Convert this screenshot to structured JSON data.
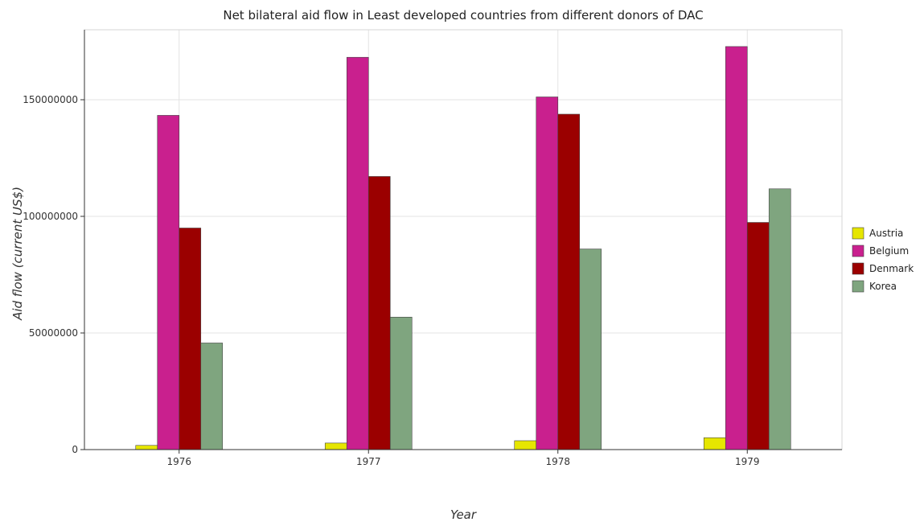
{
  "chart_data": {
    "type": "bar",
    "title": "Net bilateral aid flow in Least developed countries from different donors of DAC",
    "xlabel": "Year",
    "ylabel": "Aid flow (current US$)",
    "categories": [
      "1976",
      "1977",
      "1978",
      "1979"
    ],
    "series": [
      {
        "name": "Austria",
        "color": "#e6e600",
        "values": [
          1800000,
          2800000,
          3800000,
          5100000
        ]
      },
      {
        "name": "Belgium",
        "color": "#c9208e",
        "values": [
          143300000,
          168200000,
          151200000,
          172800000
        ]
      },
      {
        "name": "Denmark",
        "color": "#9b0000",
        "values": [
          95000000,
          117100000,
          143800000,
          97400000
        ]
      },
      {
        "name": "Korea",
        "color": "#7fa57f",
        "values": [
          45700000,
          56800000,
          86000000,
          111800000
        ]
      }
    ],
    "ylim": [
      0,
      180000000
    ],
    "yticks": [
      0,
      50000000,
      100000000,
      150000000
    ],
    "ytick_labels": [
      "0",
      "50000000",
      "100000000",
      "150000000"
    ],
    "grid": true,
    "legend_position": "right"
  }
}
